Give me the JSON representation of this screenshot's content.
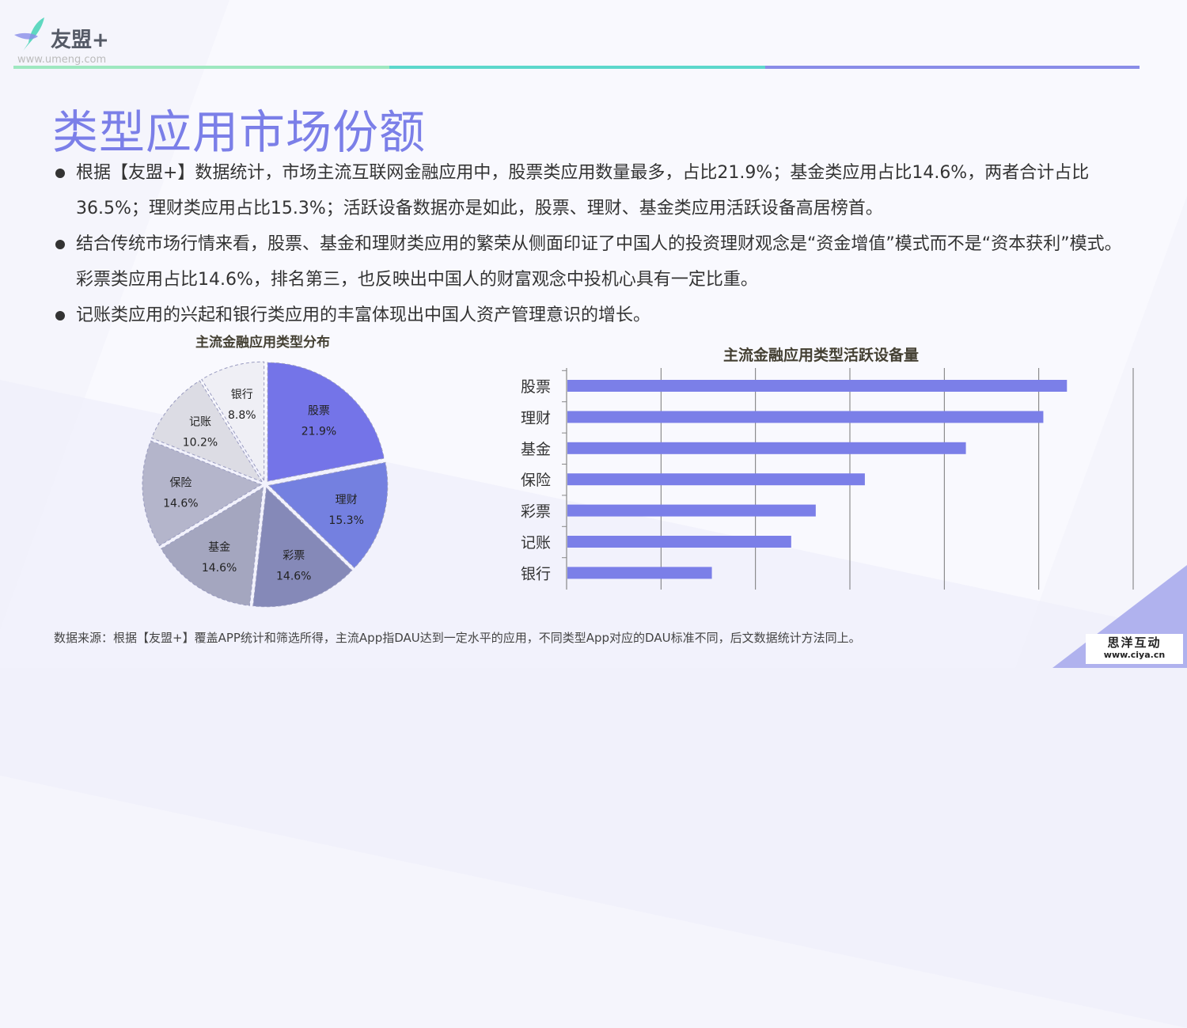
{
  "logo": {
    "name": "友盟+",
    "url": "www.umeng.com"
  },
  "header_colors": [
    "#9ee8c0",
    "#5dd8cc",
    "#8a8de8"
  ],
  "title": "类型应用市场份额",
  "bullets": [
    "根据【友盟+】数据统计，市场主流互联网金融应用中，股票类应用数量最多，占比21.9%；基金类应用占比14.6%，两者合计占比36.5%；理财类应用占比15.3%；活跃设备数据亦是如此，股票、理财、基金类应用活跃设备高居榜首。",
    "结合传统市场行情来看，股票、基金和理财类应用的繁荣从侧面印证了中国人的投资理财观念是“资金增值”模式而不是“资本获利”模式。彩票类应用占比14.6%，排名第三，也反映出中国人的财富观念中投机心具有一定比重。",
    "记账类应用的兴起和银行类应用的丰富体现出中国人资产管理意识的增长。"
  ],
  "chart_data": [
    {
      "type": "pie",
      "title": "主流金融应用类型分布",
      "unit": "%",
      "categories": [
        "股票",
        "理财",
        "彩票",
        "基金",
        "保险",
        "记账",
        "银行"
      ],
      "values": [
        21.9,
        15.3,
        14.6,
        14.6,
        14.6,
        10.2,
        8.8
      ],
      "labels": [
        "21.9%",
        "15.3%",
        "14.6%",
        "14.6%",
        "14.6%",
        "10.2%",
        "8.8%"
      ],
      "colors": [
        "#7474e8",
        "#7480e0",
        "#8589b8",
        "#a4a6bf",
        "#b4b5cb",
        "#dcdce4",
        "#efeff5"
      ]
    },
    {
      "type": "bar",
      "orientation": "horizontal",
      "title": "主流金融应用类型活跃设备量",
      "categories": [
        "股票",
        "理财",
        "基金",
        "保险",
        "彩票",
        "记账",
        "银行"
      ],
      "values": [
        5.29,
        5.04,
        4.22,
        3.15,
        2.63,
        2.37,
        1.53
      ],
      "xlim": [
        0,
        6
      ],
      "grid": true,
      "tick_labels_shown": false,
      "color": "#7b7fe8"
    }
  ],
  "footer": "数据来源：根据【友盟+】覆盖APP统计和筛选所得，主流App指DAU达到一定水平的应用，不同类型App对应的DAU标准不同，后文数据统计方法同上。",
  "badge": {
    "name": "思洋互动",
    "url": "www.ciya.cn"
  }
}
